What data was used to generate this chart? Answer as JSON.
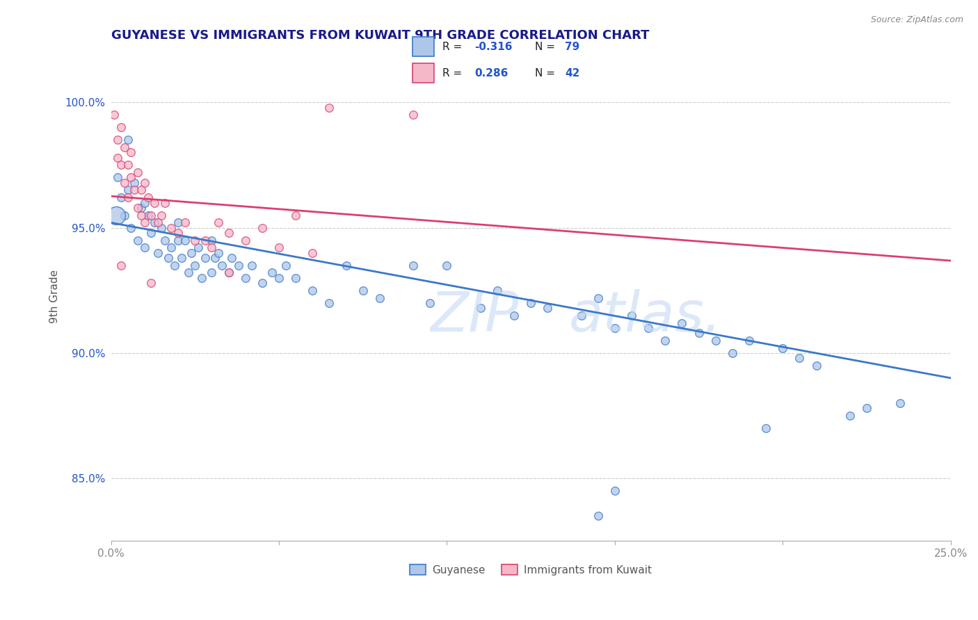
{
  "title": "GUYANESE VS IMMIGRANTS FROM KUWAIT 9TH GRADE CORRELATION CHART",
  "source": "Source: ZipAtlas.com",
  "ylabel": "9th Grade",
  "legend_r_blue": "-0.316",
  "legend_n_blue": "79",
  "legend_r_pink": "0.286",
  "legend_n_pink": "42",
  "blue_color": "#aec6e8",
  "pink_color": "#f4b8c8",
  "trend_blue": "#3a78c9",
  "trend_pink": "#d94070",
  "xlim": [
    0.0,
    25.0
  ],
  "ylim": [
    82.5,
    102.0
  ],
  "y_ticks": [
    85.0,
    90.0,
    95.0,
    100.0
  ],
  "y_tick_labels": [
    "85.0%",
    "90.0%",
    "95.0%",
    "100.0%"
  ],
  "x_ticks": [
    0.0,
    5.0,
    10.0,
    15.0,
    20.0,
    25.0
  ],
  "x_tick_labels": [
    "0.0%",
    "",
    "",
    "",
    "",
    "25.0%"
  ],
  "grid_color": "#cccccc",
  "background_color": "#ffffff",
  "title_color": "#1a1a8c",
  "axis_label_color": "#555555",
  "tick_color": "#2255cc",
  "legend_label_color": "#555555",
  "blue_dots": [
    [
      0.2,
      97.0
    ],
    [
      0.3,
      96.2
    ],
    [
      0.4,
      95.5
    ],
    [
      0.5,
      96.5
    ],
    [
      0.5,
      98.5
    ],
    [
      0.6,
      95.0
    ],
    [
      0.7,
      96.8
    ],
    [
      0.8,
      94.5
    ],
    [
      0.9,
      95.8
    ],
    [
      1.0,
      94.2
    ],
    [
      1.0,
      96.0
    ],
    [
      1.1,
      95.5
    ],
    [
      1.2,
      94.8
    ],
    [
      1.3,
      95.2
    ],
    [
      1.4,
      94.0
    ],
    [
      1.5,
      95.0
    ],
    [
      1.6,
      94.5
    ],
    [
      1.7,
      93.8
    ],
    [
      1.8,
      94.2
    ],
    [
      1.9,
      93.5
    ],
    [
      2.0,
      94.5
    ],
    [
      2.0,
      95.2
    ],
    [
      2.1,
      93.8
    ],
    [
      2.2,
      94.5
    ],
    [
      2.3,
      93.2
    ],
    [
      2.4,
      94.0
    ],
    [
      2.5,
      93.5
    ],
    [
      2.6,
      94.2
    ],
    [
      2.7,
      93.0
    ],
    [
      2.8,
      93.8
    ],
    [
      3.0,
      93.2
    ],
    [
      3.0,
      94.5
    ],
    [
      3.1,
      93.8
    ],
    [
      3.2,
      94.0
    ],
    [
      3.3,
      93.5
    ],
    [
      3.5,
      93.2
    ],
    [
      3.6,
      93.8
    ],
    [
      3.8,
      93.5
    ],
    [
      4.0,
      93.0
    ],
    [
      4.2,
      93.5
    ],
    [
      4.5,
      92.8
    ],
    [
      4.8,
      93.2
    ],
    [
      5.0,
      93.0
    ],
    [
      5.2,
      93.5
    ],
    [
      5.5,
      93.0
    ],
    [
      6.0,
      92.5
    ],
    [
      6.5,
      92.0
    ],
    [
      7.0,
      93.5
    ],
    [
      7.5,
      92.5
    ],
    [
      8.0,
      92.2
    ],
    [
      9.0,
      93.5
    ],
    [
      9.5,
      92.0
    ],
    [
      10.0,
      93.5
    ],
    [
      11.0,
      91.8
    ],
    [
      11.5,
      92.5
    ],
    [
      12.0,
      91.5
    ],
    [
      12.5,
      92.0
    ],
    [
      13.0,
      91.8
    ],
    [
      14.0,
      91.5
    ],
    [
      14.5,
      92.2
    ],
    [
      15.0,
      91.0
    ],
    [
      15.5,
      91.5
    ],
    [
      16.0,
      91.0
    ],
    [
      16.5,
      90.5
    ],
    [
      17.0,
      91.2
    ],
    [
      17.5,
      90.8
    ],
    [
      18.0,
      90.5
    ],
    [
      18.5,
      90.0
    ],
    [
      19.0,
      90.5
    ],
    [
      20.0,
      90.2
    ],
    [
      20.5,
      89.8
    ],
    [
      21.0,
      89.5
    ],
    [
      22.0,
      87.5
    ],
    [
      22.5,
      87.8
    ],
    [
      23.5,
      88.0
    ],
    [
      14.5,
      83.5
    ],
    [
      19.5,
      87.0
    ],
    [
      15.0,
      84.5
    ]
  ],
  "pink_dots": [
    [
      0.1,
      99.5
    ],
    [
      0.2,
      98.5
    ],
    [
      0.2,
      97.8
    ],
    [
      0.3,
      99.0
    ],
    [
      0.3,
      97.5
    ],
    [
      0.4,
      98.2
    ],
    [
      0.4,
      96.8
    ],
    [
      0.5,
      97.5
    ],
    [
      0.5,
      96.2
    ],
    [
      0.6,
      98.0
    ],
    [
      0.6,
      97.0
    ],
    [
      0.7,
      96.5
    ],
    [
      0.8,
      97.2
    ],
    [
      0.8,
      95.8
    ],
    [
      0.9,
      96.5
    ],
    [
      0.9,
      95.5
    ],
    [
      1.0,
      96.8
    ],
    [
      1.0,
      95.2
    ],
    [
      1.1,
      96.2
    ],
    [
      1.2,
      95.5
    ],
    [
      1.3,
      96.0
    ],
    [
      1.4,
      95.2
    ],
    [
      1.5,
      95.5
    ],
    [
      1.6,
      96.0
    ],
    [
      1.8,
      95.0
    ],
    [
      2.0,
      94.8
    ],
    [
      2.2,
      95.2
    ],
    [
      2.5,
      94.5
    ],
    [
      2.8,
      94.5
    ],
    [
      3.0,
      94.2
    ],
    [
      3.2,
      95.2
    ],
    [
      3.5,
      94.8
    ],
    [
      4.0,
      94.5
    ],
    [
      4.5,
      95.0
    ],
    [
      5.0,
      94.2
    ],
    [
      5.5,
      95.5
    ],
    [
      6.0,
      94.0
    ],
    [
      0.3,
      93.5
    ],
    [
      1.2,
      92.8
    ],
    [
      3.5,
      93.2
    ],
    [
      6.5,
      99.8
    ],
    [
      9.0,
      99.5
    ]
  ],
  "blue_large_dot": [
    0.15,
    95.5
  ],
  "blue_large_size": 350,
  "dot_size": 70,
  "watermark_zip_color": "#c5daf5",
  "watermark_atlas_color": "#c5daf5"
}
